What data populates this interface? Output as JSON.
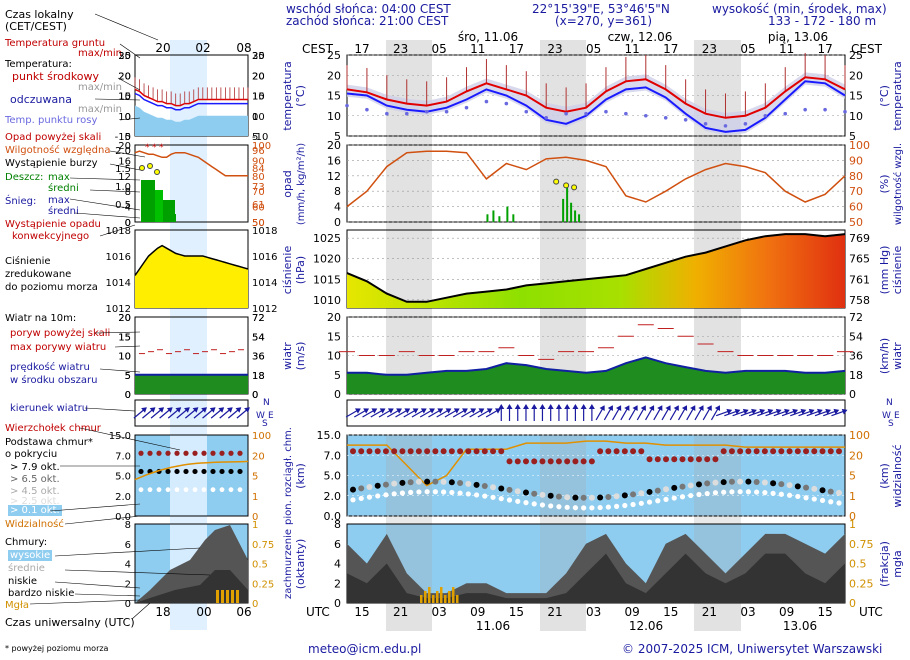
{
  "header": {
    "sunrise": "wschód słońca: 04:00 CEST",
    "sunset": "zachód słońca: 21:00 CEST",
    "coords": "22°15'39\"E, 53°46'5\"N",
    "grid": "(x=270, y=361)",
    "height_label": "wysokość (min, środek, max)",
    "height_values": "133 - 172 - 180 m",
    "tz_left": "CEST",
    "tz_right": "CEST",
    "day_labels": [
      "śro, 11.06",
      "czw, 12.06",
      "pią, 13.06"
    ],
    "top_hours": [
      "17",
      "23",
      "05",
      "11",
      "17",
      "23",
      "05",
      "11",
      "17",
      "23",
      "05",
      "11",
      "17"
    ],
    "bottom_hours": [
      "15",
      "21",
      "03",
      "09",
      "15",
      "21",
      "03",
      "09",
      "15",
      "21",
      "03",
      "09",
      "15"
    ],
    "bottom_dates": [
      "11.06",
      "12.06",
      "13.06"
    ],
    "utc_left": "UTC",
    "utc_right": "UTC"
  },
  "legend": {
    "local_time": "Czas lokalny",
    "local_time_tz": "(CET/CEST)",
    "local_hours": [
      "20",
      "02",
      "08"
    ],
    "ground_temp": "Temperatura gruntu",
    "ground_temp_sub": "max/min",
    "temperature": "Temperatura:",
    "mid_point": "punkt środkowy",
    "max_min_a": "max/min",
    "felt": "odczuwana",
    "max_min_b": "max/min",
    "dew_point": "Temp. punktu rosy",
    "precip_above": "Opad powyżej skali",
    "humidity": "Wilgotność względna",
    "storm": "Wystąpienie burzy",
    "rain": "Deszcz:",
    "rain_max": "max",
    "rain_mean": "średni",
    "snow": "Śnieg:",
    "snow_max": "max",
    "snow_mean": "średni",
    "conv_precip_1": "Wystąpienie opadu",
    "conv_precip_2": "konwekcyjnego",
    "pressure_1": "Ciśnienie",
    "pressure_2": "zredukowane",
    "pressure_3": "do poziomu morza",
    "wind_10m": "Wiatr na 10m:",
    "gust_above": "poryw powyżej skali",
    "gust_max": "max porywy wiatru",
    "wind_speed": "prędkość wiatru",
    "wind_area": "w środku obszaru",
    "wind_dir": "kierunek wiatru",
    "cb_top": "Wierzchołek chmur",
    "cloud_base_1": "Podstawa chmur*",
    "cloud_base_2": "o pokryciu",
    "okt_79": "> 7.9 okt.",
    "okt_65": "> 6.5 okt.",
    "okt_45": "> 4.5 okt.",
    "okt_25": "> 2.5 okt.",
    "okt_01": "> 0.1 okt.",
    "visibility": "Widzialność",
    "clouds": "Chmury:",
    "high": "wysokie",
    "middle": "średnie",
    "low": "niskie",
    "very_low": "bardzo niskie",
    "fog": "Mgła",
    "utc_time": "Czas uniwersalny (UTC)",
    "utc_hours": [
      "18",
      "00",
      "06"
    ],
    "footnote": "* powyżej poziomu morza"
  },
  "axis_titles": {
    "temp_left": "temperatura",
    "temp_left_unit": "(°C)",
    "temp_right": "temperatura",
    "temp_right_unit": "(°C)",
    "precip_left": "opad",
    "precip_left_unit": "(mm/h, kg/m²/h)",
    "precip_right": "wilgotność wzgl.",
    "precip_right_unit": "(%)",
    "press_left": "ciśnienie",
    "press_left_unit": "(hPa)",
    "press_right": "ciśnienie",
    "press_right_unit": "(mm Hg)",
    "wind_left": "wiatr",
    "wind_left_unit": "(m/s)",
    "wind_right": "wiatr",
    "wind_right_unit": "(km/h)",
    "cloud_left_1": "pion. rozciągł. chm.",
    "cloud_left_2": "(km)",
    "cloud_right_1": "widzialność",
    "cloud_right_2": "(km)",
    "cover_left_1": "zachmurzenie",
    "cover_left_2": "(oktanty)",
    "cover_right_1": "mgła",
    "cover_right_2": "(frakcja)"
  },
  "compass": {
    "n": "N",
    "w": "W",
    "e": "E",
    "s": "S"
  },
  "footer": {
    "email": "meteo@icm.edu.pl",
    "copyright": "© 2007-2025 ICM, Uniwersytet Warszawski"
  },
  "colors": {
    "temp_line": "#e00000",
    "felt_line": "#1a1aff",
    "dew_points": "#6a6ae0",
    "humidity_line": "#d05010",
    "rain_bars": "#00a000",
    "pressure_low": "#8ee000",
    "pressure_high": "#e03010",
    "wind_bands": "#1e8c1e",
    "sky_blue": "#8fcdf0",
    "cloud_dark": "#3c3c3c",
    "night_band": "#d8d8d8"
  },
  "chart_data": [
    {
      "type": "line",
      "title": "temperatura",
      "unit": "°C",
      "ylim": [
        5,
        25
      ],
      "yticks_left": [
        5,
        10,
        15,
        20,
        25
      ],
      "yticks_right": [
        5,
        10,
        15,
        20,
        25
      ],
      "x_hours_utc": [
        15,
        18,
        21,
        0,
        3,
        6,
        9,
        12,
        15,
        18,
        21,
        0,
        3,
        6,
        9,
        12,
        15,
        18,
        21,
        0,
        3,
        6,
        9,
        12,
        15,
        18
      ],
      "series": [
        {
          "name": "punkt środkowy",
          "values": [
            16.5,
            15.8,
            14.0,
            13.0,
            12.5,
            13.5,
            16.0,
            18.0,
            16.5,
            15.0,
            12.0,
            11.0,
            12.0,
            16.0,
            18.5,
            19.0,
            16.5,
            13.0,
            10.5,
            9.5,
            10.0,
            12.0,
            16.0,
            19.5,
            19.0,
            16.5
          ]
        },
        {
          "name": "odczuwana",
          "values": [
            15.5,
            15.0,
            12.5,
            11.5,
            11.0,
            12.0,
            14.0,
            16.5,
            15.0,
            12.5,
            9.0,
            8.0,
            10.0,
            14.0,
            16.5,
            17.0,
            14.5,
            10.5,
            7.0,
            6.0,
            6.5,
            9.5,
            14.0,
            18.5,
            18.0,
            15.0
          ]
        },
        {
          "name": "Temp. punktu rosy",
          "values": [
            12.5,
            11.5,
            10.5,
            10.5,
            11.0,
            11.0,
            12.0,
            13.5,
            13.0,
            11.0,
            9.5,
            10.5,
            10.5,
            11.0,
            10.5,
            10.0,
            9.5,
            9.0,
            8.0,
            7.5,
            8.0,
            10.0,
            10.5,
            11.5,
            11.5,
            11.0
          ]
        }
      ]
    },
    {
      "type": "bar",
      "title": "opad",
      "unit": "mm/h",
      "ylim": [
        0,
        20
      ],
      "yticks_left": [
        0,
        4,
        8,
        12,
        16,
        20
      ],
      "humidity_ticks": [
        50,
        60,
        70,
        80,
        90,
        100
      ],
      "humidity_values": [
        60,
        70,
        86,
        95,
        96,
        96,
        95,
        78,
        88,
        84,
        91,
        92,
        90,
        86,
        67,
        63,
        70,
        78,
        84,
        88,
        86,
        82,
        70,
        63,
        68,
        80
      ]
    },
    {
      "type": "area",
      "title": "ciśnienie",
      "unit": "hPa",
      "ylim": [
        1008,
        1027
      ],
      "yticks_left": [
        1010,
        1015,
        1020,
        1025
      ],
      "yticks_right": [
        758,
        761,
        765,
        769
      ],
      "values": [
        1016.5,
        1014.5,
        1011.5,
        1009.5,
        1009.5,
        1010.5,
        1011.5,
        1012.0,
        1012.5,
        1013.5,
        1014.0,
        1014.5,
        1015.0,
        1015.5,
        1016.0,
        1017.5,
        1019.0,
        1020.5,
        1021.5,
        1023.0,
        1024.5,
        1025.5,
        1026.0,
        1026.0,
        1025.5,
        1026.0
      ]
    },
    {
      "type": "line",
      "title": "wiatr",
      "unit": "m/s",
      "ylim": [
        0,
        20
      ],
      "yticks_left": [
        0,
        5,
        10,
        15,
        20
      ],
      "yticks_right": [
        0,
        18,
        36,
        54,
        72
      ],
      "series": [
        {
          "name": "max porywy wiatru",
          "values": [
            11,
            10,
            10,
            11,
            10,
            10,
            11,
            11,
            12,
            10,
            9,
            11,
            11,
            12,
            15,
            18,
            17,
            15,
            13,
            11,
            10,
            10,
            10,
            10,
            10,
            11
          ]
        },
        {
          "name": "prędkość wiatru",
          "values": [
            5.5,
            5.5,
            5.0,
            5.0,
            5.5,
            6.0,
            6.0,
            6.5,
            8.0,
            7.5,
            6.5,
            6.0,
            5.5,
            6.0,
            8.0,
            9.5,
            8.0,
            7.0,
            6.0,
            5.5,
            6.0,
            6.0,
            6.0,
            5.5,
            5.5,
            6.0
          ]
        }
      ]
    },
    {
      "type": "scatter",
      "title": "pion. rozciągł. chm.",
      "unit": "km",
      "ylim": [
        0,
        15
      ],
      "yticks_left": [
        0,
        2.0,
        5.0,
        7.0,
        15.0
      ],
      "yticks_right": [
        0,
        1,
        5,
        20,
        100
      ],
      "visibility_ticks": [
        0,
        1,
        5,
        20,
        100
      ]
    },
    {
      "type": "area",
      "title": "zachmurzenie",
      "unit": "oktanty",
      "ylim": [
        0,
        8
      ],
      "yticks_left": [
        0,
        2,
        4,
        6,
        8
      ],
      "yticks_right": [
        0,
        0.25,
        0.5,
        0.75,
        1
      ]
    }
  ]
}
